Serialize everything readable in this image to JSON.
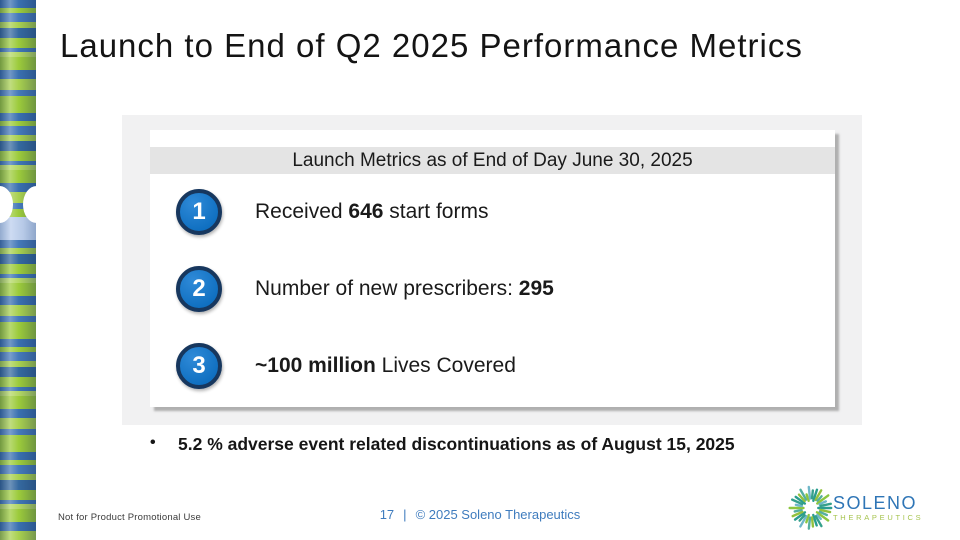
{
  "slide": {
    "title": "Launch to End of Q2 2025 Performance Metrics"
  },
  "metrics_card": {
    "header": "Launch Metrics as of End of Day June 30, 2025",
    "items": [
      {
        "number": "1",
        "prefix": "Received ",
        "bold": "646",
        "suffix": " start forms"
      },
      {
        "number": "2",
        "prefix": "Number of new prescribers: ",
        "bold": "295",
        "suffix": ""
      },
      {
        "number": "3",
        "prefix": "",
        "bold": "~100 million",
        "suffix": " Lives Covered"
      }
    ]
  },
  "bullet_note": {
    "marker": "•",
    "text": "5.2 % adverse event related discontinuations as of August 15, 2025"
  },
  "footer": {
    "disclaimer": "Not for Product Promotional Use",
    "page_number": "17",
    "separator": "|",
    "copyright": "© 2025 Soleno Therapeutics",
    "logo": {
      "name": "SOLENO",
      "subtext": "THERAPEUTICS",
      "icon": "sunburst-icon"
    }
  },
  "colors": {
    "badge_fill": "#1274C5",
    "badge_border": "#17375E",
    "header_band": "#E4E4E4",
    "panel_gray": "#F1F1F2",
    "footer_blue": "#3F7CBE",
    "logo_blue": "#2E75B6",
    "logo_green": "#A6C44F",
    "stripe_blue": "#3A70B0",
    "stripe_green": "#9CCB3B",
    "centromere_light_blue": "#B6C9E7"
  }
}
